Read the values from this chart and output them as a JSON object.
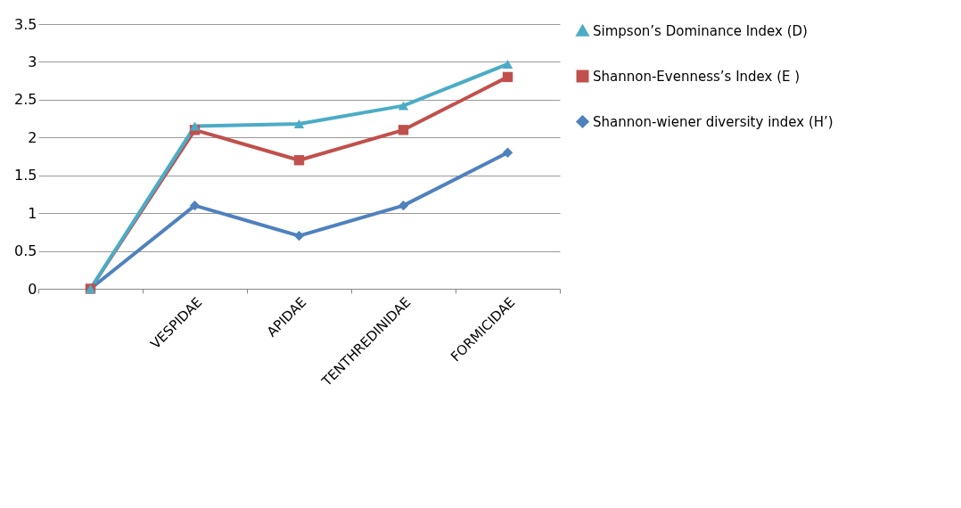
{
  "chart_data": {
    "type": "line",
    "categories": [
      null,
      "VESPIDAE",
      "APIDAE",
      "TENTHREDINIDAE",
      "FORMICIDAE"
    ],
    "series": [
      {
        "name": "Simpson’s Dominance Index (D)",
        "color": "#4bacc6",
        "marker": "triangle",
        "values": [
          0,
          2.15,
          2.18,
          2.42,
          2.97
        ]
      },
      {
        "name": "Shannon-Evenness’s Index (E )",
        "color": "#c0504d",
        "marker": "square",
        "values": [
          0,
          2.1,
          1.7,
          2.1,
          2.8
        ]
      },
      {
        "name": "Shannon-wiener diversity index (H’)",
        "color": "#4f81bd",
        "marker": "diamond",
        "values": [
          0,
          1.1,
          0.7,
          1.1,
          1.8
        ]
      }
    ],
    "ylim": [
      0,
      3.5
    ],
    "yticks": [
      0,
      0.5,
      1,
      1.5,
      2,
      2.5,
      3,
      3.5
    ],
    "grid": "y",
    "legend": "right"
  }
}
